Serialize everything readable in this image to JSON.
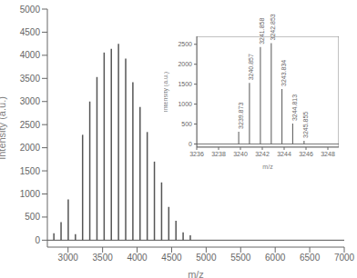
{
  "chart_data": [
    {
      "type": "bar",
      "xlabel": "m/z",
      "ylabel": "Intensity (a.u.)",
      "x": [
        2797,
        2901,
        3005,
        3109,
        3213,
        3317,
        3421,
        3525,
        3629,
        3733,
        3837,
        3941,
        4045,
        4149,
        4253,
        4357,
        4461,
        4565,
        4669,
        4773
      ],
      "values": [
        150,
        390,
        880,
        130,
        2280,
        3000,
        3530,
        4060,
        4140,
        4250,
        3930,
        3420,
        2880,
        2340,
        1700,
        1250,
        720,
        420,
        170,
        105
      ],
      "color": "#555555",
      "xlim": [
        2700,
        7000
      ],
      "ylim": [
        -150,
        5000
      ],
      "xticks": [
        3000,
        3500,
        4000,
        4500,
        5000,
        5500,
        6000,
        6500,
        7000
      ],
      "yticks": [
        0,
        500,
        1000,
        1500,
        2000,
        2500,
        3000,
        3500,
        4000,
        4500,
        5000
      ]
    },
    {
      "type": "bar",
      "xlabel": "m/z",
      "ylabel": "Intensity (a.u.)",
      "x": [
        3239.873,
        3240.857,
        3241.858,
        3242.853,
        3243.834,
        3244.813,
        3245.855
      ],
      "values": [
        310,
        1530,
        2430,
        2530,
        1380,
        510,
        80
      ],
      "annotations": [
        "3239.873",
        "3240.857",
        "3241.858",
        "3242.853",
        "3243.834",
        "3244.813",
        "3245.855"
      ],
      "color": "#555555",
      "xlim": [
        3236,
        3249
      ],
      "ylim": [
        -80,
        2700
      ],
      "xticks": [
        3236,
        3238,
        3240,
        3242,
        3244,
        3246,
        3248
      ],
      "yticks": [
        0,
        500,
        1000,
        1500,
        2000,
        2500
      ]
    }
  ]
}
